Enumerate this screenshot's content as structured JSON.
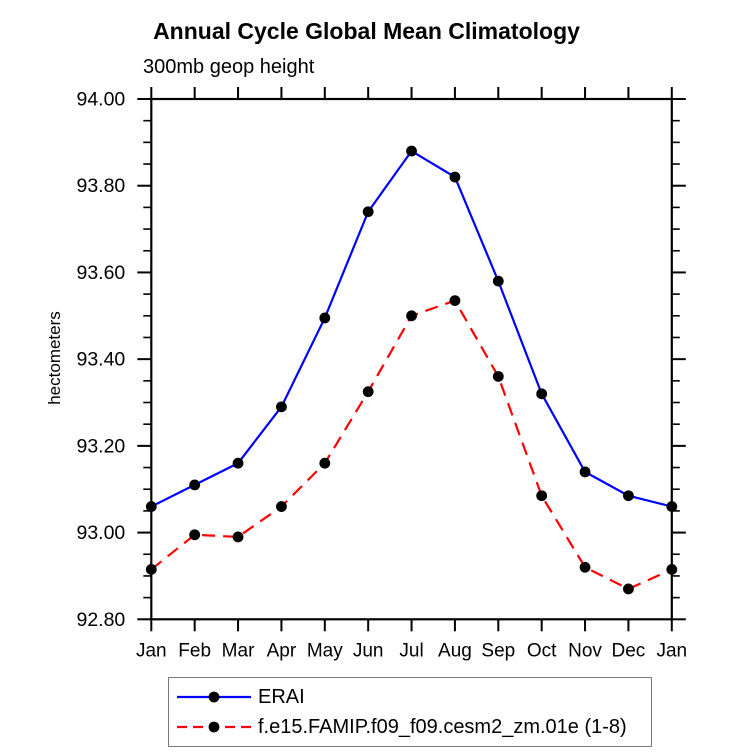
{
  "chart_data": {
    "type": "line",
    "title": "Annual Cycle Global Mean Climatology",
    "subtitle": "300mb geop height",
    "ylabel": "hectometers",
    "categories": [
      "Jan",
      "Feb",
      "Mar",
      "Apr",
      "May",
      "Jun",
      "Jul",
      "Aug",
      "Sep",
      "Oct",
      "Nov",
      "Dec",
      "Jan"
    ],
    "series": [
      {
        "name": "ERAI",
        "color": "#0000ff",
        "line_style": "solid",
        "marker": "filled-circle",
        "marker_color": "#000000",
        "values": [
          93.06,
          93.11,
          93.16,
          93.29,
          93.495,
          93.74,
          93.88,
          93.82,
          93.58,
          93.32,
          93.14,
          93.085,
          93.06
        ]
      },
      {
        "name": "f.e15.FAMIP.f09_f09.cesm2_zm.01e (1-8)",
        "color": "#ff0000",
        "line_style": "dashed",
        "marker": "filled-circle",
        "marker_color": "#000000",
        "values": [
          92.915,
          92.995,
          92.99,
          93.06,
          93.16,
          93.325,
          93.5,
          93.535,
          93.36,
          93.085,
          92.92,
          92.87,
          92.915
        ]
      }
    ],
    "ylim": [
      92.8,
      94.0
    ],
    "ytick_step": 0.2,
    "yminor_step": 0.05,
    "ytick_labels": [
      "94.00",
      "93.80",
      "93.60",
      "93.40",
      "93.20",
      "93.00",
      "92.80"
    ],
    "grid": false,
    "legend_position": "bottom"
  }
}
